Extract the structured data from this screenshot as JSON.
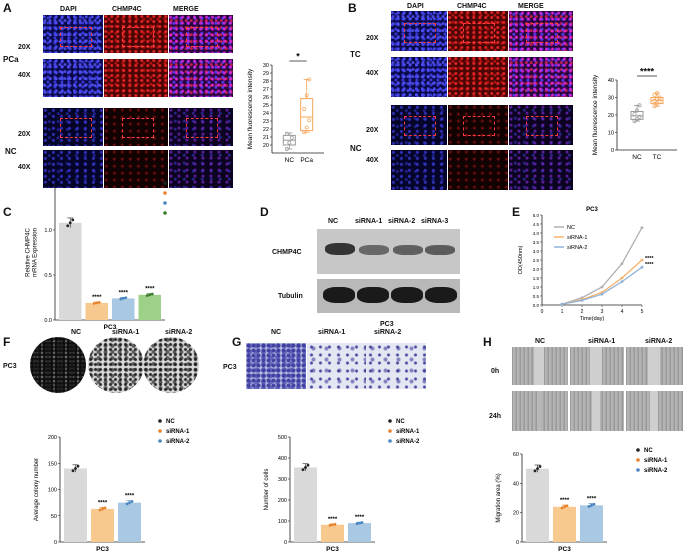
{
  "panels": {
    "A": {
      "letter": "A",
      "columns": [
        "DAPI",
        "CHMP4C",
        "MERGE"
      ],
      "rows": [
        "20X",
        "40X",
        "20X",
        "40X"
      ],
      "groups": [
        "PCa",
        "NC"
      ],
      "chart_title": ""
    },
    "B": {
      "letter": "B",
      "columns": [
        "DAPI",
        "CHMP4C",
        "MERGE"
      ],
      "rows": [
        "20X",
        "40X",
        "20X",
        "40X"
      ],
      "groups": [
        "TC",
        "NC"
      ]
    },
    "C": {
      "letter": "C",
      "xlabel": "PC3"
    },
    "D": {
      "letter": "D",
      "lanes": [
        "NC",
        "siRNA-1",
        "siRNA-2",
        "siRNA-3"
      ],
      "proteins": [
        "CHMP4C",
        "Tubulin"
      ],
      "xlabel": "PC3"
    },
    "E": {
      "letter": "E"
    },
    "F": {
      "letter": "F",
      "lanes": [
        "NC",
        "siRNA-1",
        "siRNA-2"
      ],
      "row_label": "PC3"
    },
    "G": {
      "letter": "G",
      "lanes": [
        "NC",
        "siRNA-1",
        "siRNA-2"
      ],
      "row_label": "PC3"
    },
    "H": {
      "letter": "H",
      "lanes": [
        "NC",
        "siRNA-1",
        "siRNA-2"
      ],
      "rows": [
        "0h",
        "24h"
      ]
    }
  },
  "chart_data": [
    {
      "id": "A-box",
      "type": "box",
      "categories": [
        "NC",
        "PCa"
      ],
      "ylabel": "Mean fluorescence intensity",
      "ylim": [
        19,
        30
      ],
      "yticks": [
        20,
        21,
        22,
        23,
        24,
        25,
        26,
        27,
        28,
        29,
        30
      ],
      "boxes": [
        {
          "name": "NC",
          "min": 19.5,
          "q1": 20.0,
          "median": 20.6,
          "q3": 21.2,
          "max": 21.5,
          "points": [
            19.5,
            20.3,
            20.9,
            21.4
          ],
          "color": "#9a9a9a"
        },
        {
          "name": "PCa",
          "min": 21.6,
          "q1": 21.8,
          "median": 23.5,
          "q3": 25.8,
          "max": 28.2,
          "points": [
            21.6,
            22.2,
            23.1,
            24.5,
            26.2,
            28.2
          ],
          "color": "#f5a55a"
        }
      ],
      "significance": "*"
    },
    {
      "id": "B-box",
      "type": "box",
      "categories": [
        "NC",
        "TC"
      ],
      "ylabel": "Mean fluorescence intensity",
      "ylim": [
        0,
        40
      ],
      "yticks": [
        0,
        10,
        20,
        30,
        40
      ],
      "boxes": [
        {
          "name": "NC",
          "min": 16.5,
          "q1": 17.5,
          "median": 19.5,
          "q3": 22.0,
          "max": 25.5,
          "points": [
            16.5,
            17.8,
            19.0,
            20.5,
            22.5,
            25.5
          ],
          "color": "#9a9a9a"
        },
        {
          "name": "TC",
          "min": 25.0,
          "q1": 26.5,
          "median": 28.5,
          "q3": 30.0,
          "max": 32.5,
          "points": [
            25.0,
            26.5,
            27.5,
            28.0,
            29.0,
            30.0,
            31.5,
            32.5
          ],
          "color": "#f5a55a"
        }
      ],
      "significance": "****"
    },
    {
      "id": "C-bar",
      "type": "bar",
      "ylabel": "Relative CHMP4C\nmRNA Expression",
      "ylim": [
        0,
        1.5
      ],
      "yticks": [
        0.0,
        0.5,
        1.0,
        1.5
      ],
      "xlabel": "PC3",
      "series": [
        {
          "name": "NC",
          "value": 1.08,
          "color": "#d9d9d9",
          "dot": "#222222",
          "sig": ""
        },
        {
          "name": "siRNA-1",
          "value": 0.19,
          "color": "#f7c98f",
          "dot": "#e8822a",
          "sig": "****"
        },
        {
          "name": "siRNA-2",
          "value": 0.24,
          "color": "#a9c8e4",
          "dot": "#4a86c0",
          "sig": "****"
        },
        {
          "name": "siRNA-3",
          "value": 0.28,
          "color": "#9fd08a",
          "dot": "#3a7d2c",
          "sig": "****"
        }
      ]
    },
    {
      "id": "E-line",
      "type": "line",
      "title": "PC3",
      "xlabel": "Time(day)",
      "ylabel": "OD(450nm)",
      "x": [
        0,
        1,
        2,
        3,
        4,
        5
      ],
      "xlim": [
        0,
        5
      ],
      "ylim": [
        0.0,
        5.0
      ],
      "yticks": [
        0.0,
        0.5,
        1.0,
        1.5,
        2.0,
        2.5,
        3.0,
        3.5,
        4.0,
        4.5,
        5.0
      ],
      "series": [
        {
          "name": "NC",
          "values": [
            null,
            0.05,
            0.4,
            1.0,
            2.3,
            4.3
          ],
          "color": "#b0b0b0"
        },
        {
          "name": "siRNA-1",
          "values": [
            null,
            0.05,
            0.3,
            0.7,
            1.5,
            2.5
          ],
          "color": "#f5b26b"
        },
        {
          "name": "siRNA-2",
          "values": [
            null,
            0.05,
            0.25,
            0.6,
            1.3,
            2.1
          ],
          "color": "#8fb4dc"
        }
      ],
      "sig": [
        "****",
        "****"
      ]
    },
    {
      "id": "F-bar",
      "type": "bar",
      "ylabel": "Average colony number",
      "ylim": [
        0,
        200
      ],
      "yticks": [
        0,
        50,
        100,
        150,
        200
      ],
      "xlabel": "PC3",
      "series": [
        {
          "name": "NC",
          "value": 140,
          "color": "#d9d9d9",
          "dot": "#222222",
          "sig": ""
        },
        {
          "name": "siRNA-1",
          "value": 63,
          "color": "#f7c98f",
          "dot": "#e8822a",
          "sig": "****"
        },
        {
          "name": "siRNA-2",
          "value": 75,
          "color": "#a9c8e4",
          "dot": "#4a86c0",
          "sig": "****"
        }
      ]
    },
    {
      "id": "G-bar",
      "type": "bar",
      "ylabel": "Number of cells",
      "ylim": [
        0,
        500
      ],
      "yticks": [
        0,
        100,
        200,
        300,
        400,
        500
      ],
      "xlabel": "PC3",
      "series": [
        {
          "name": "NC",
          "value": 355,
          "color": "#d9d9d9",
          "dot": "#222222",
          "sig": ""
        },
        {
          "name": "siRNA-1",
          "value": 82,
          "color": "#f7c98f",
          "dot": "#e8822a",
          "sig": "****"
        },
        {
          "name": "siRNA-2",
          "value": 90,
          "color": "#a9c8e4",
          "dot": "#4a86c0",
          "sig": "****"
        }
      ]
    },
    {
      "id": "H-bar",
      "type": "bar",
      "ylabel": "Migration area (%)",
      "ylim": [
        0,
        60
      ],
      "yticks": [
        0,
        20,
        40,
        60
      ],
      "xlabel": "PC3",
      "series": [
        {
          "name": "NC",
          "value": 50,
          "color": "#d9d9d9",
          "dot": "#222222",
          "sig": ""
        },
        {
          "name": "siRNA-1",
          "value": 24,
          "color": "#f7c98f",
          "dot": "#e8822a",
          "sig": "****"
        },
        {
          "name": "siRNA-2",
          "value": 25,
          "color": "#a9c8e4",
          "dot": "#4a86c0",
          "sig": "****"
        }
      ]
    }
  ]
}
